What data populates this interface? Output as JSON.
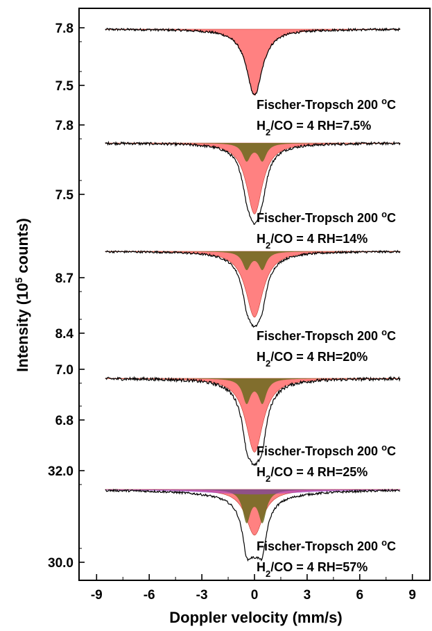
{
  "chart_data": {
    "type": "line",
    "title": "",
    "xlabel": "Doppler velocity (mm/s)",
    "ylabel": {
      "main": "Intensity (10",
      "sup": "5",
      "end": " counts)"
    },
    "xlim": [
      -10,
      10
    ],
    "x_ticks": [
      "-9",
      "-6",
      "-3",
      "0",
      "3",
      "6",
      "9"
    ],
    "x_range_data": [
      -8.5,
      8.3
    ],
    "colors": {
      "data": "#000000",
      "fit_main": "#ff6b6b",
      "fit_doublet": "#6b6b1e",
      "fit_outline": "#c0392b",
      "fit_blue": "#3b5bdb",
      "fit_purple": "#9b3bd1"
    },
    "panels": [
      {
        "condition": {
          "line1": "Fischer-Tropsch 200 ",
          "sup1": "o",
          "unit1": "C",
          "line2a": "H",
          "sub2": "2",
          "line2b": "/CO = 4 RH=7.5%"
        },
        "baseline": 7.8,
        "y_ticks": [
          "7.8",
          "7.5"
        ],
        "components": [
          {
            "name": "singlet",
            "center": 0.0,
            "hwhm": 0.55,
            "depth": 0.34,
            "color": "fit_main"
          }
        ],
        "min_intensity": 7.46
      },
      {
        "condition": {
          "line1": "Fischer-Tropsch 200 ",
          "sup1": "o",
          "unit1": "C",
          "line2a": "H",
          "sub2": "2",
          "line2b": "/CO = 4 RH=14%"
        },
        "baseline": 7.7,
        "y_ticks": [
          "7.8",
          "7.5"
        ],
        "components": [
          {
            "name": "singlet",
            "center": 0.0,
            "hwhm": 0.55,
            "depth": 0.33,
            "color": "fit_main"
          },
          {
            "name": "doublet",
            "center": 0.0,
            "split": 0.9,
            "hwhm": 0.28,
            "depth": 0.08,
            "color": "fit_doublet"
          }
        ],
        "min_intensity": 7.3
      },
      {
        "condition": {
          "line1": "Fischer-Tropsch 200 ",
          "sup1": "o",
          "unit1": "C",
          "line2a": "H",
          "sub2": "2",
          "line2b": "/CO = 4 RH=20%"
        },
        "baseline": 8.92,
        "y_ticks": [
          "8.7",
          "8.4"
        ],
        "components": [
          {
            "name": "singlet",
            "center": 0.0,
            "hwhm": 0.6,
            "depth": 0.38,
            "color": "fit_main"
          },
          {
            "name": "doublet",
            "center": 0.0,
            "split": 0.9,
            "hwhm": 0.28,
            "depth": 0.1,
            "color": "fit_doublet"
          }
        ],
        "min_intensity": 8.4
      },
      {
        "condition": {
          "line1": "Fischer-Tropsch 200 ",
          "sup1": "o",
          "unit1": "C",
          "line2a": "H",
          "sub2": "2",
          "line2b": "/CO = 4 RH=25%"
        },
        "baseline": 6.95,
        "y_ticks": [
          "7.0",
          "6.8"
        ],
        "components": [
          {
            "name": "singlet",
            "center": 0.0,
            "hwhm": 0.6,
            "depth": 0.28,
            "color": "fit_main"
          },
          {
            "name": "doublet",
            "center": 0.0,
            "split": 0.9,
            "hwhm": 0.28,
            "depth": 0.09,
            "color": "fit_doublet"
          }
        ],
        "min_intensity": 6.62
      },
      {
        "condition": {
          "line1": "Fischer-Tropsch 200 ",
          "sup1": "o",
          "unit1": "C",
          "line2a": "H",
          "sub2": "2",
          "line2b": "/CO = 4 RH=57%"
        },
        "baseline": 31.6,
        "y_ticks": [
          "32.0",
          "30.0"
        ],
        "components": [
          {
            "name": "singlet",
            "center": 0.0,
            "hwhm": 0.6,
            "depth": 1.1,
            "color": "fit_main"
          },
          {
            "name": "doublet",
            "center": 0.0,
            "split": 0.9,
            "hwhm": 0.28,
            "depth": 0.75,
            "color": "fit_doublet"
          },
          {
            "name": "broad-sextet",
            "center": 0.0,
            "hwhm": 3.5,
            "depth": 0.12,
            "color": "fit_purple"
          }
        ],
        "min_intensity": 29.95
      }
    ]
  }
}
